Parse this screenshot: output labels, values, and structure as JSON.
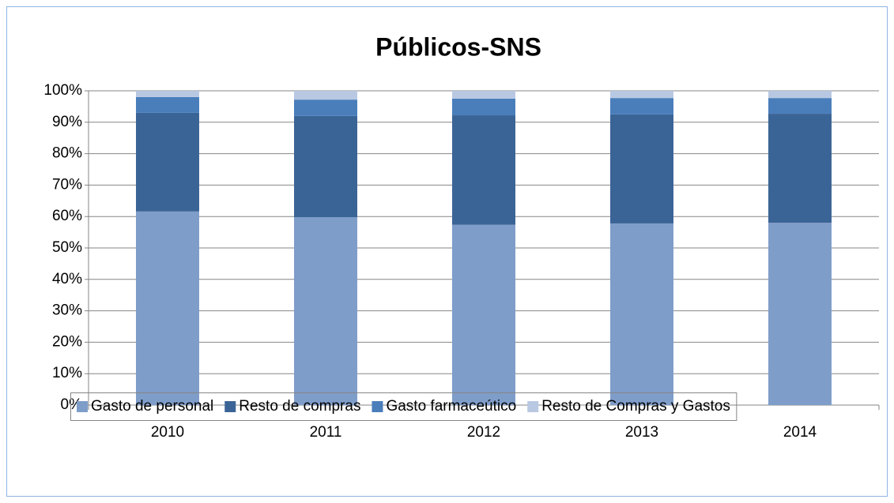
{
  "chart_data": {
    "type": "stacked_bar",
    "title": "Públicos-SNS",
    "categories": [
      "2010",
      "2011",
      "2012",
      "2013",
      "2014"
    ],
    "series": [
      {
        "name": "Gasto de personal",
        "color": "#7f9dc9",
        "values": [
          61.6,
          59.8,
          57.4,
          57.8,
          58.0
        ]
      },
      {
        "name": "Resto de compras",
        "color": "#3b6496",
        "values": [
          31.4,
          32.2,
          34.8,
          34.7,
          34.7
        ]
      },
      {
        "name": "Gasto farmaceútico",
        "color": "#4a7ebb",
        "values": [
          5.0,
          5.2,
          5.3,
          5.2,
          5.0
        ]
      },
      {
        "name": "Resto de Compras y Gastos",
        "color": "#b9c8e2",
        "values": [
          2.0,
          2.8,
          2.5,
          2.3,
          2.3
        ]
      }
    ],
    "ylim": [
      0,
      100
    ],
    "yticks": [
      {
        "value": 0,
        "label": "0%"
      },
      {
        "value": 10,
        "label": "10%"
      },
      {
        "value": 20,
        "label": "20%"
      },
      {
        "value": 30,
        "label": "30%"
      },
      {
        "value": 40,
        "label": "40%"
      },
      {
        "value": 50,
        "label": "50%"
      },
      {
        "value": 60,
        "label": "60%"
      },
      {
        "value": 70,
        "label": "70%"
      },
      {
        "value": 80,
        "label": "80%"
      },
      {
        "value": 90,
        "label": "90%"
      },
      {
        "value": 100,
        "label": "100%"
      }
    ],
    "grid": true,
    "legend": "bottom"
  }
}
